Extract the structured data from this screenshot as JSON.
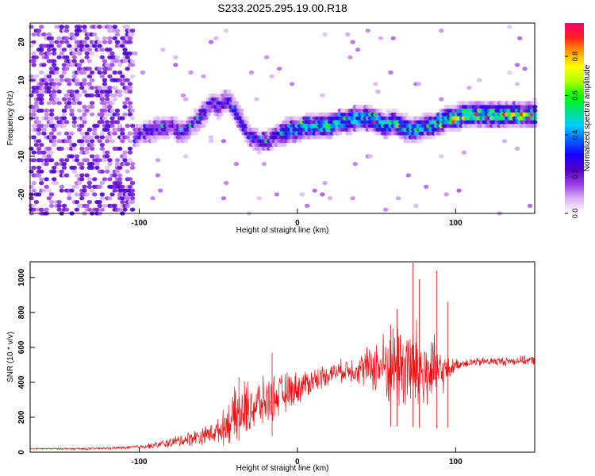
{
  "title": "S233.2025.295.19.00.R18",
  "chart_data": [
    {
      "type": "heatmap",
      "title": "S233.2025.295.19.00.R18",
      "xlabel": "Height of straight line (km)",
      "ylabel": "Frequency (Hz)",
      "xlim": [
        -169,
        150
      ],
      "ylim": [
        -25,
        25
      ],
      "xticks": [
        -100,
        0,
        100
      ],
      "xtick_labels": [
        "-100",
        "0",
        "100"
      ],
      "yticks": [
        -20,
        -10,
        0,
        10,
        20
      ],
      "ytick_labels": [
        "-20",
        "-10",
        "0",
        "10",
        "20"
      ],
      "colorbar": {
        "label": "Normalized spectral amplitude",
        "range": [
          0,
          0.97
        ],
        "ticks": [
          0.0,
          0.2,
          0.4,
          0.6,
          0.8
        ],
        "tick_labels": [
          "0.0",
          "0.2",
          "0.4",
          "0.6",
          "0.8"
        ],
        "colors": [
          "#ffffff",
          "#d9b3f5",
          "#9a3ce6",
          "#5200c8",
          "#1800ff",
          "#0060ff",
          "#00d0ff",
          "#00e080",
          "#00ff00",
          "#b0ff00",
          "#ffff00",
          "#ffa000",
          "#ff2020",
          "#ff0070"
        ]
      },
      "ridge_x": [
        -110,
        -100,
        -90,
        -80,
        -75,
        -70,
        -65,
        -60,
        -55,
        -50,
        -45,
        -40,
        -35,
        -30,
        -25,
        -20,
        -15,
        -10,
        -5,
        0,
        5,
        10,
        15,
        20,
        25,
        30,
        35,
        40,
        45,
        50,
        55,
        60,
        65,
        70,
        75,
        80,
        85,
        90,
        95,
        100,
        105,
        110,
        115,
        120,
        125,
        130,
        135,
        140,
        145,
        150
      ],
      "ridge_y": [
        -6,
        -4,
        -3,
        -2,
        -4,
        -3,
        -1,
        1,
        4,
        3,
        5,
        2,
        -2,
        -5,
        -6,
        -6,
        -5,
        -4,
        -3,
        -3,
        -2,
        -2,
        -2,
        -2,
        -1,
        -1,
        0,
        0,
        0,
        -1,
        -2,
        -1,
        -2,
        -3,
        -3,
        -2,
        -2,
        -1,
        0,
        0,
        1,
        1,
        1,
        1,
        1,
        1,
        1,
        1,
        1,
        1
      ]
    },
    {
      "type": "line",
      "xlabel": "Height of straight line (km)",
      "ylabel": "SNR (10 * v/v)",
      "xlim": [
        -169,
        150
      ],
      "ylim": [
        0,
        1090
      ],
      "xticks": [
        -100,
        0,
        100
      ],
      "xtick_labels": [
        "-100",
        "0",
        "100"
      ],
      "yticks": [
        0,
        200,
        400,
        600,
        800,
        1000
      ],
      "ytick_labels": [
        "0",
        "200",
        "400",
        "600",
        "800",
        "1000"
      ],
      "series": [
        {
          "name": "SNR",
          "color": "#ee1111",
          "x": [
            -169,
            -150,
            -130,
            -110,
            -100,
            -90,
            -80,
            -70,
            -60,
            -50,
            -45,
            -40,
            -35,
            -30,
            -25,
            -20,
            -15,
            -10,
            -5,
            0,
            5,
            10,
            15,
            20,
            25,
            30,
            35,
            40,
            45,
            50,
            55,
            60,
            65,
            70,
            75,
            80,
            85,
            90,
            95,
            100,
            105,
            110,
            115,
            120,
            125,
            130,
            135,
            140,
            145,
            150
          ],
          "y": [
            20,
            20,
            20,
            25,
            30,
            40,
            55,
            75,
            95,
            120,
            160,
            200,
            230,
            250,
            270,
            290,
            310,
            330,
            350,
            370,
            390,
            410,
            430,
            450,
            460,
            470,
            475,
            480,
            485,
            490,
            490,
            495,
            500,
            480,
            470,
            460,
            455,
            450,
            470,
            500,
            510,
            515,
            515,
            520,
            520,
            520,
            520,
            525,
            525,
            525
          ],
          "spread": [
            5,
            6,
            8,
            10,
            14,
            22,
            35,
            50,
            60,
            80,
            130,
            180,
            200,
            190,
            170,
            160,
            150,
            140,
            130,
            110,
            100,
            90,
            80,
            70,
            70,
            80,
            90,
            110,
            150,
            190,
            240,
            280,
            320,
            360,
            340,
            300,
            260,
            180,
            90,
            40,
            30,
            30,
            30,
            30,
            30,
            30,
            30,
            30,
            30,
            30
          ],
          "peaks": [
            {
              "x": -37,
              "y": 430
            },
            {
              "x": -16,
              "y": 570
            },
            {
              "x": 73,
              "y": 1085
            },
            {
              "x": 77,
              "y": 990
            },
            {
              "x": 88,
              "y": 1040
            },
            {
              "x": 95,
              "y": 860
            },
            {
              "x": 63,
              "y": 820
            },
            {
              "x": 59,
              "y": 730
            }
          ]
        }
      ]
    }
  ]
}
